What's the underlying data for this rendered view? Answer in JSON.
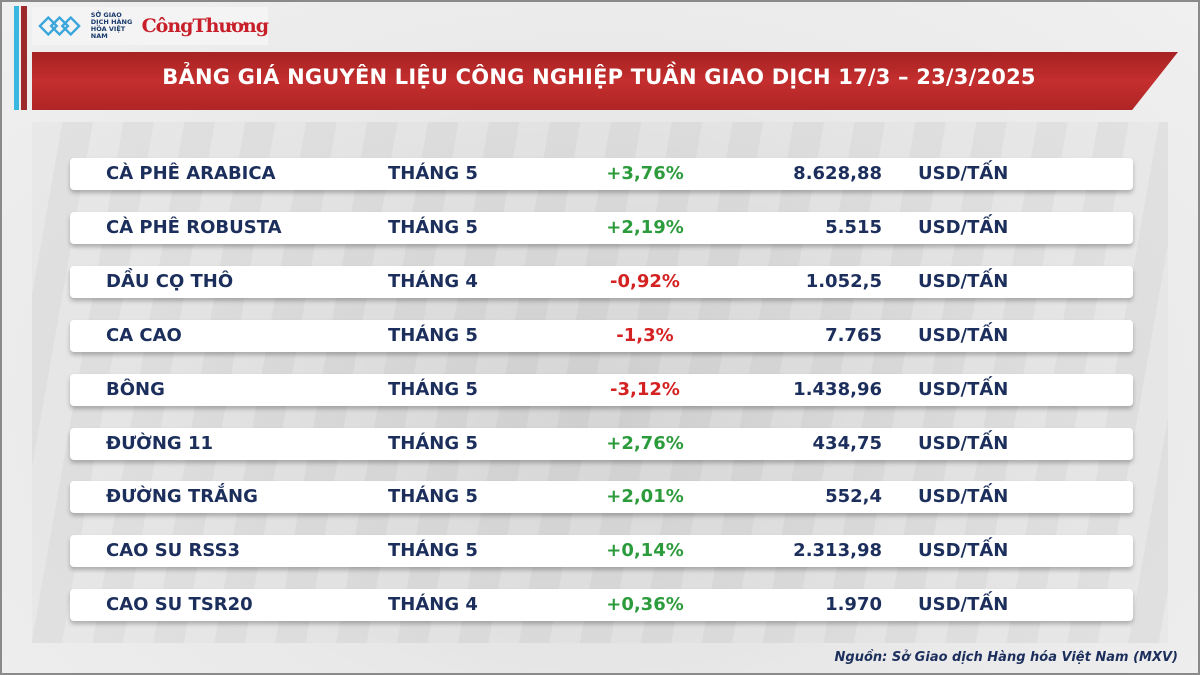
{
  "logo": {
    "org_text": "SỞ GIAO DỊCH HÀNG HÓA VIỆT NAM",
    "brand": "CôngThương"
  },
  "header": {
    "title": "BẢNG GIÁ NGUYÊN LIỆU CÔNG NGHIỆP TUẦN GIAO DỊCH 17/3 – 23/3/2025"
  },
  "colors": {
    "up": "#2c9b3c",
    "down": "#d42222",
    "banner": "#b02525",
    "text": "#1c2f5c"
  },
  "rows": [
    {
      "name": "CÀ PHÊ ARABICA",
      "month": "THÁNG 5",
      "change": "+3,76%",
      "direction": "up",
      "price": "8.628,88",
      "unit": "USD/TẤN"
    },
    {
      "name": "CÀ PHÊ ROBUSTA",
      "month": "THÁNG 5",
      "change": "+2,19%",
      "direction": "up",
      "price": "5.515",
      "unit": "USD/TẤN"
    },
    {
      "name": "DẦU CỌ THÔ",
      "month": "THÁNG 4",
      "change": "-0,92%",
      "direction": "down",
      "price": "1.052,5",
      "unit": "USD/TẤN"
    },
    {
      "name": "CA CAO",
      "month": "THÁNG 5",
      "change": "-1,3%",
      "direction": "down",
      "price": "7.765",
      "unit": "USD/TẤN"
    },
    {
      "name": "BÔNG",
      "month": "THÁNG 5",
      "change": "-3,12%",
      "direction": "down",
      "price": "1.438,96",
      "unit": "USD/TẤN"
    },
    {
      "name": "ĐƯỜNG 11",
      "month": "THÁNG 5",
      "change": "+2,76%",
      "direction": "up",
      "price": "434,75",
      "unit": "USD/TẤN"
    },
    {
      "name": "ĐƯỜNG TRẮNG",
      "month": "THÁNG 5",
      "change": "+2,01%",
      "direction": "up",
      "price": "552,4",
      "unit": "USD/TẤN"
    },
    {
      "name": "CAO SU RSS3",
      "month": "THÁNG 5",
      "change": "+0,14%",
      "direction": "up",
      "price": "2.313,98",
      "unit": "USD/TẤN"
    },
    {
      "name": "CAO SU TSR20",
      "month": "THÁNG 4",
      "change": "+0,36%",
      "direction": "up",
      "price": "1.970",
      "unit": "USD/TẤN"
    }
  ],
  "footer": {
    "source": "Nguồn: Sở Giao dịch Hàng hóa Việt Nam (MXV)"
  }
}
